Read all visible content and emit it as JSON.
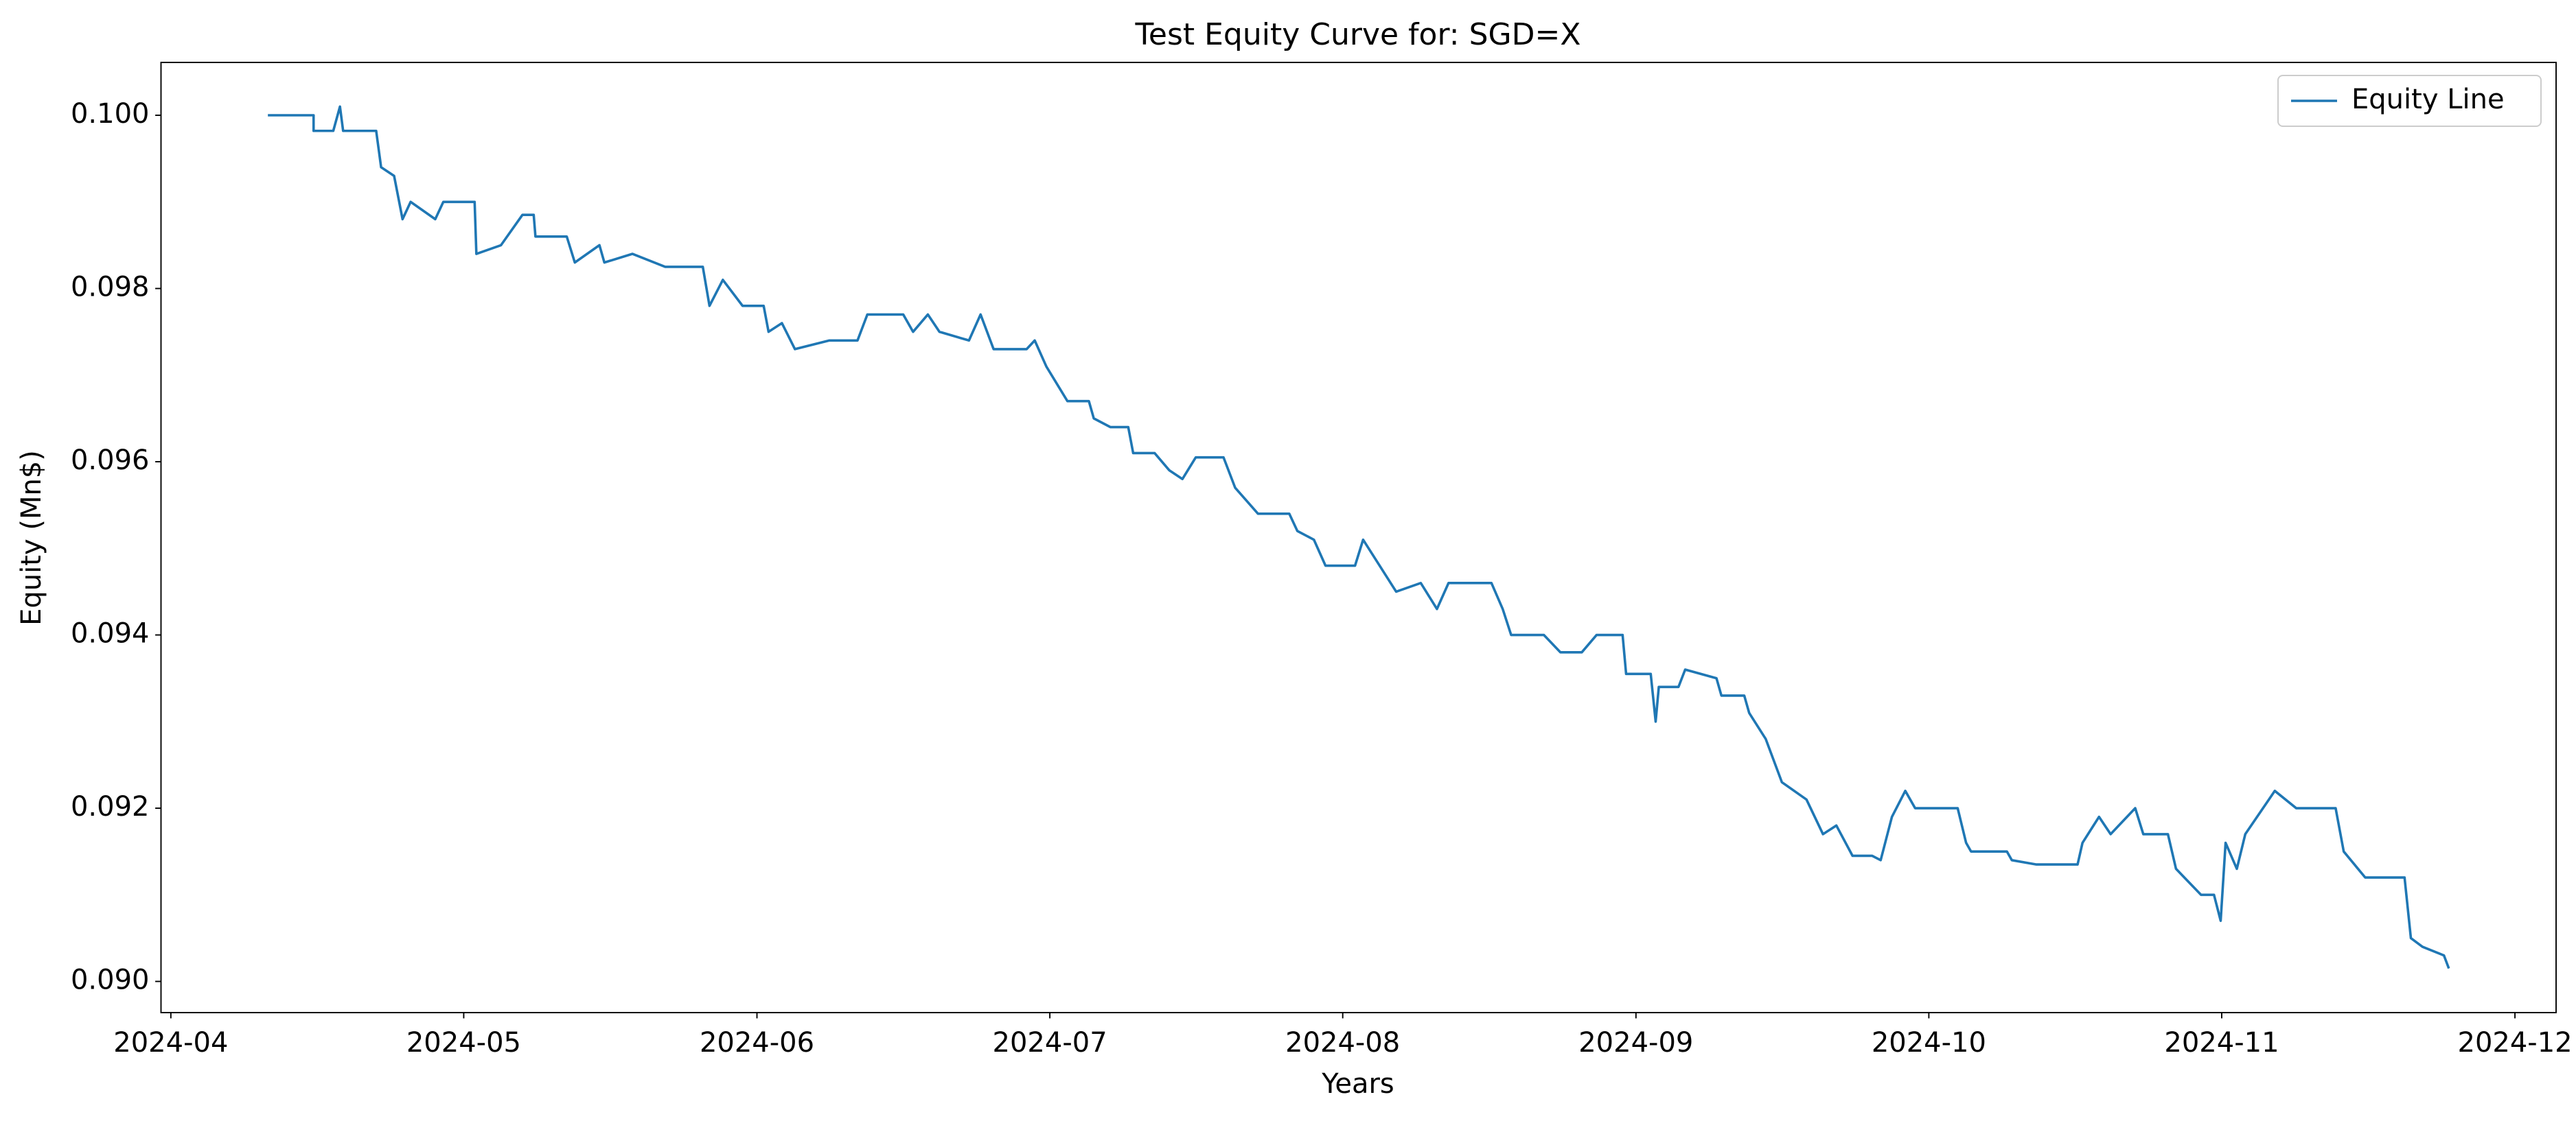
{
  "chart_data": {
    "type": "line",
    "title": "Test Equity Curve for: SGD=X",
    "xlabel": "Years",
    "ylabel": "Equity (Mn$)",
    "legend": "upper right",
    "grid": false,
    "xlim": [
      2024.2472,
      2024.9284
    ],
    "ylim": [
      0.08964,
      0.10061
    ],
    "xticks": [
      {
        "value": 2024.25,
        "label": "2024-04"
      },
      {
        "value": 2024.3333,
        "label": "2024-05"
      },
      {
        "value": 2024.4167,
        "label": "2024-06"
      },
      {
        "value": 2024.5,
        "label": "2024-07"
      },
      {
        "value": 2024.5833,
        "label": "2024-08"
      },
      {
        "value": 2024.6667,
        "label": "2024-09"
      },
      {
        "value": 2024.75,
        "label": "2024-10"
      },
      {
        "value": 2024.8333,
        "label": "2024-11"
      },
      {
        "value": 2024.9167,
        "label": "2024-12"
      }
    ],
    "yticks": [
      {
        "value": 0.09,
        "label": "0.090"
      },
      0.092,
      0.094,
      0.096,
      0.098,
      {
        "value": 0.1,
        "label": "0.100"
      }
    ],
    "x": [
      2024.2776,
      2024.2906,
      2024.2906,
      2024.2962,
      2024.2981,
      2024.299,
      2024.3084,
      2024.3098,
      2024.3135,
      2024.3159,
      2024.3182,
      2024.3252,
      2024.3275,
      2024.3364,
      2024.3369,
      2024.3439,
      2024.35,
      2024.3532,
      2024.3537,
      2024.3626,
      2024.3649,
      2024.3719,
      2024.3733,
      2024.3813,
      2024.3906,
      2024.4013,
      2024.4032,
      2024.407,
      2024.4126,
      2024.4186,
      2024.42,
      2024.4238,
      2024.4275,
      2024.4373,
      2024.4453,
      2024.4481,
      2024.4583,
      2024.4611,
      2024.4653,
      2024.4686,
      2024.477,
      2024.4803,
      2024.484,
      2024.4934,
      2024.4957,
      2024.499,
      2024.505,
      2024.5111,
      2024.5125,
      2024.5172,
      2024.5223,
      2024.5237,
      2024.5298,
      2024.534,
      2024.5377,
      2024.5415,
      2024.5494,
      2024.5527,
      2024.5592,
      2024.5681,
      2024.5704,
      2024.5751,
      2024.5784,
      2024.5868,
      2024.5891,
      2024.5938,
      2024.5985,
      2024.6055,
      2024.6101,
      2024.6134,
      2024.6256,
      2024.6288,
      2024.6312,
      2024.6405,
      2024.6452,
      2024.6513,
      2024.6555,
      2024.6629,
      2024.6639,
      2024.6709,
      2024.6723,
      2024.6732,
      2024.6788,
      2024.6807,
      2024.6896,
      2024.691,
      2024.6975,
      2024.6989,
      2024.7036,
      2024.7082,
      2024.7152,
      2024.7199,
      2024.7237,
      2024.7283,
      2024.7339,
      2024.7363,
      2024.7395,
      2024.7433,
      2024.7461,
      2024.7582,
      2024.7606,
      2024.762,
      2024.7722,
      2024.7736,
      2024.7806,
      2024.7923,
      2024.7937,
      2024.7984,
      2024.8017,
      2024.8087,
      2024.811,
      2024.818,
      2024.8203,
      2024.8274,
      2024.8311,
      2024.833,
      2024.8344,
      2024.8376,
      2024.84,
      2024.8484,
      2024.8545,
      2024.8657,
      2024.868,
      2024.8741,
      2024.8853,
      2024.8871,
      2024.8904,
      2024.8965,
      2024.8979
    ],
    "series": [
      {
        "name": "Equity Line",
        "color": "#1f77b4",
        "values": [
          0.1,
          0.1,
          0.09982,
          0.09982,
          0.1001,
          0.09982,
          0.09982,
          0.0994,
          0.0993,
          0.0988,
          0.099,
          0.0988,
          0.099,
          0.099,
          0.0984,
          0.0985,
          0.09885,
          0.09885,
          0.0986,
          0.0986,
          0.0983,
          0.0985,
          0.0983,
          0.0984,
          0.09825,
          0.09825,
          0.0978,
          0.0981,
          0.0978,
          0.0978,
          0.0975,
          0.0976,
          0.0973,
          0.0974,
          0.0974,
          0.0977,
          0.0977,
          0.0975,
          0.0977,
          0.0975,
          0.0974,
          0.0977,
          0.0973,
          0.0973,
          0.0974,
          0.0971,
          0.0967,
          0.0967,
          0.0965,
          0.0964,
          0.0964,
          0.0961,
          0.0961,
          0.0959,
          0.0958,
          0.09605,
          0.09605,
          0.0957,
          0.0954,
          0.0954,
          0.0952,
          0.0951,
          0.0948,
          0.0948,
          0.0951,
          0.0948,
          0.0945,
          0.0946,
          0.0943,
          0.0946,
          0.0946,
          0.0943,
          0.094,
          0.094,
          0.0938,
          0.0938,
          0.094,
          0.094,
          0.09355,
          0.09355,
          0.093,
          0.0934,
          0.0934,
          0.0936,
          0.0935,
          0.0933,
          0.0933,
          0.0931,
          0.0928,
          0.0923,
          0.0921,
          0.0917,
          0.0918,
          0.09145,
          0.09145,
          0.0914,
          0.0919,
          0.0922,
          0.092,
          0.092,
          0.0916,
          0.0915,
          0.0915,
          0.0914,
          0.09135,
          0.09135,
          0.0916,
          0.0919,
          0.0917,
          0.092,
          0.0917,
          0.0917,
          0.0913,
          0.091,
          0.091,
          0.0907,
          0.0916,
          0.0913,
          0.0917,
          0.0922,
          0.092,
          0.092,
          0.0915,
          0.0912,
          0.0912,
          0.0905,
          0.0904,
          0.0903,
          0.09015
        ]
      }
    ]
  }
}
